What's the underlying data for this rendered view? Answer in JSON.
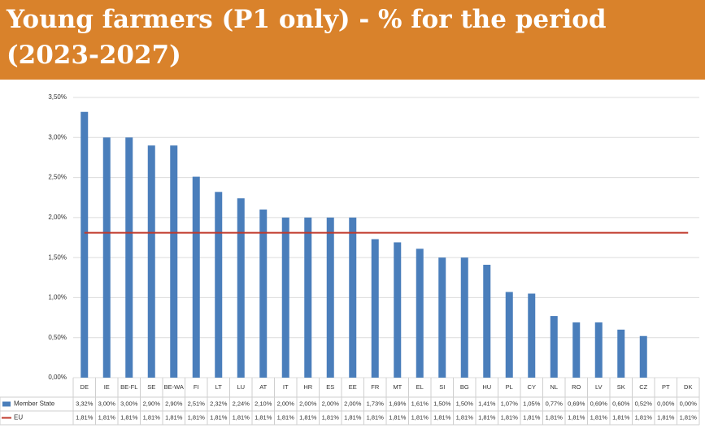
{
  "chart_data": {
    "type": "bar",
    "title": "Young farmers (P1 only) - % for the period (2023-2027)",
    "categories": [
      "DE",
      "IE",
      "BE-FL",
      "SE",
      "BE-WA",
      "FI",
      "LT",
      "LU",
      "AT",
      "IT",
      "HR",
      "ES",
      "EE",
      "FR",
      "MT",
      "EL",
      "SI",
      "BG",
      "HU",
      "PL",
      "CY",
      "NL",
      "RO",
      "LV",
      "SK",
      "CZ",
      "PT",
      "DK"
    ],
    "series": [
      {
        "name": "Member State",
        "color": "#4a7ebb",
        "values": [
          3.32,
          3.0,
          3.0,
          2.9,
          2.9,
          2.51,
          2.32,
          2.24,
          2.1,
          2.0,
          2.0,
          2.0,
          2.0,
          1.73,
          1.69,
          1.61,
          1.5,
          1.5,
          1.41,
          1.07,
          1.05,
          0.77,
          0.69,
          0.69,
          0.6,
          0.52,
          0.0,
          0.0
        ],
        "value_labels": [
          "3,32%",
          "3,00%",
          "3,00%",
          "2,90%",
          "2,90%",
          "2,51%",
          "2,32%",
          "2,24%",
          "2,10%",
          "2,00%",
          "2,00%",
          "2,00%",
          "2,00%",
          "1,73%",
          "1,69%",
          "1,61%",
          "1,50%",
          "1,50%",
          "1,41%",
          "1,07%",
          "1,05%",
          "0,77%",
          "0,69%",
          "0,69%",
          "0,60%",
          "0,52%",
          "0,00%",
          "0,00%"
        ]
      },
      {
        "name": "EU",
        "type": "line",
        "color": "#c0392b",
        "values": [
          1.81,
          1.81,
          1.81,
          1.81,
          1.81,
          1.81,
          1.81,
          1.81,
          1.81,
          1.81,
          1.81,
          1.81,
          1.81,
          1.81,
          1.81,
          1.81,
          1.81,
          1.81,
          1.81,
          1.81,
          1.81,
          1.81,
          1.81,
          1.81,
          1.81,
          1.81,
          1.81,
          1.81
        ],
        "value_labels": [
          "1,81%",
          "1,81%",
          "1,81%",
          "1,81%",
          "1,81%",
          "1,81%",
          "1,81%",
          "1,81%",
          "1,81%",
          "1,81%",
          "1,81%",
          "1,81%",
          "1,81%",
          "1,81%",
          "1,81%",
          "1,81%",
          "1,81%",
          "1,81%",
          "1,81%",
          "1,81%",
          "1,81%",
          "1,81%",
          "1,81%",
          "1,81%",
          "1,81%",
          "1,81%",
          "1,81%",
          "1,81%"
        ]
      }
    ],
    "ylim": [
      0,
      3.5
    ],
    "yticks": [
      {
        "value": 0,
        "label": "0,00%"
      },
      {
        "value": 0.5,
        "label": "0,50%"
      },
      {
        "value": 1,
        "label": "1,00%"
      },
      {
        "value": 1.5,
        "label": "1,50%"
      },
      {
        "value": 2,
        "label": "2,00%"
      },
      {
        "value": 2.5,
        "label": "2,50%"
      },
      {
        "value": 3,
        "label": "3,00%"
      },
      {
        "value": 3.5,
        "label": "3,50%"
      }
    ],
    "grid": true
  }
}
